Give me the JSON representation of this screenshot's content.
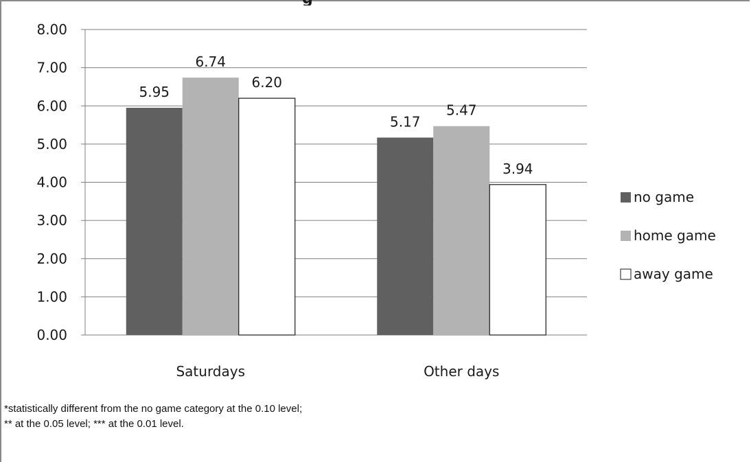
{
  "page": {
    "top_title_fragment": "g",
    "footnote_line1": "*statistically different from the no game category at the 0.10 level;",
    "footnote_line2": "** at the 0.05 level; *** at the 0.01 level."
  },
  "colors": {
    "no_game": "#606060",
    "home_game": "#b3b3b3",
    "away_game": "#ffffff",
    "grid": "#7f7f7f"
  },
  "chart_data": {
    "type": "bar",
    "title": "",
    "xlabel": "",
    "ylabel": "",
    "categories": [
      "Saturdays",
      "Other days"
    ],
    "ylim": [
      0,
      8
    ],
    "yticks": [
      "0.00",
      "1.00",
      "2.00",
      "3.00",
      "4.00",
      "5.00",
      "6.00",
      "7.00",
      "8.00"
    ],
    "grid": true,
    "legend_position": "right",
    "series": [
      {
        "name": "no game",
        "values": [
          5.95,
          5.17
        ],
        "labels": [
          "5.95",
          "5.17"
        ]
      },
      {
        "name": "home game",
        "values": [
          6.74,
          5.47
        ],
        "labels": [
          "6.74",
          "5.47"
        ]
      },
      {
        "name": "away game",
        "values": [
          6.2,
          3.94
        ],
        "labels": [
          "6.20",
          "3.94"
        ]
      }
    ]
  }
}
